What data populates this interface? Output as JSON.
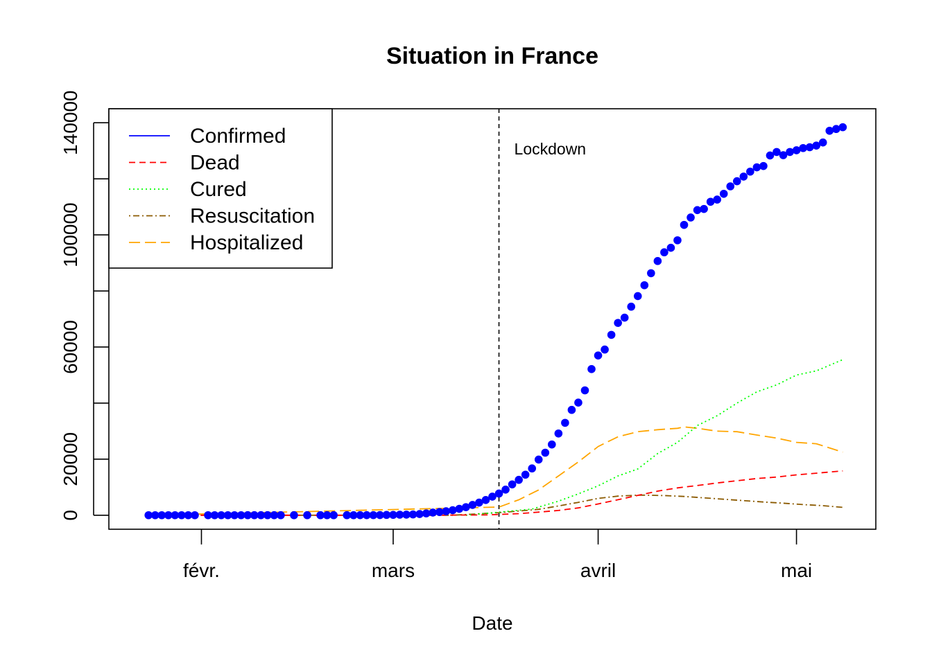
{
  "chart_data": {
    "type": "line",
    "title": "Situation in France",
    "xlabel": "Date",
    "ylabel": "",
    "x_range": [
      "2020-01-18",
      "2020-05-13"
    ],
    "ylim": [
      -5000,
      145000
    ],
    "x_ticks": [
      {
        "date": "2020-02-01",
        "label": "févr."
      },
      {
        "date": "2020-03-01",
        "label": "mars"
      },
      {
        "date": "2020-04-01",
        "label": "avril"
      },
      {
        "date": "2020-05-01",
        "label": "mai"
      }
    ],
    "y_ticks": [
      0,
      20000,
      40000,
      60000,
      80000,
      100000,
      120000,
      140000
    ],
    "y_tick_labels": [
      "0",
      "20000",
      "60000",
      "100000",
      "140000"
    ],
    "vline": {
      "date": "2020-03-17",
      "label": "Lockdown"
    },
    "legend": {
      "position": "top-left"
    },
    "series": [
      {
        "name": "Confirmed",
        "color": "#0000ff",
        "style": "points",
        "points": [
          [
            "2020-01-24",
            3
          ],
          [
            "2020-01-25",
            3
          ],
          [
            "2020-01-26",
            3
          ],
          [
            "2020-01-27",
            3
          ],
          [
            "2020-01-28",
            4
          ],
          [
            "2020-01-29",
            5
          ],
          [
            "2020-01-30",
            5
          ],
          [
            "2020-01-31",
            6
          ],
          [
            "2020-02-02",
            6
          ],
          [
            "2020-02-03",
            6
          ],
          [
            "2020-02-04",
            6
          ],
          [
            "2020-02-05",
            6
          ],
          [
            "2020-02-06",
            6
          ],
          [
            "2020-02-07",
            6
          ],
          [
            "2020-02-08",
            11
          ],
          [
            "2020-02-09",
            11
          ],
          [
            "2020-02-10",
            11
          ],
          [
            "2020-02-11",
            11
          ],
          [
            "2020-02-12",
            11
          ],
          [
            "2020-02-13",
            11
          ],
          [
            "2020-02-15",
            12
          ],
          [
            "2020-02-17",
            12
          ],
          [
            "2020-02-19",
            12
          ],
          [
            "2020-02-20",
            12
          ],
          [
            "2020-02-21",
            12
          ],
          [
            "2020-02-23",
            12
          ],
          [
            "2020-02-24",
            12
          ],
          [
            "2020-02-25",
            14
          ],
          [
            "2020-02-26",
            18
          ],
          [
            "2020-02-27",
            38
          ],
          [
            "2020-02-28",
            57
          ],
          [
            "2020-02-29",
            100
          ],
          [
            "2020-03-01",
            130
          ],
          [
            "2020-03-02",
            191
          ],
          [
            "2020-03-03",
            212
          ],
          [
            "2020-03-04",
            285
          ],
          [
            "2020-03-05",
            423
          ],
          [
            "2020-03-06",
            653
          ],
          [
            "2020-03-07",
            949
          ],
          [
            "2020-03-08",
            1126
          ],
          [
            "2020-03-09",
            1412
          ],
          [
            "2020-03-10",
            1784
          ],
          [
            "2020-03-11",
            2284
          ],
          [
            "2020-03-12",
            2876
          ],
          [
            "2020-03-13",
            3661
          ],
          [
            "2020-03-14",
            4499
          ],
          [
            "2020-03-15",
            5423
          ],
          [
            "2020-03-16",
            6633
          ],
          [
            "2020-03-17",
            7730
          ],
          [
            "2020-03-18",
            9134
          ],
          [
            "2020-03-19",
            10995
          ],
          [
            "2020-03-20",
            12612
          ],
          [
            "2020-03-21",
            14459
          ],
          [
            "2020-03-22",
            16689
          ],
          [
            "2020-03-23",
            19856
          ],
          [
            "2020-03-24",
            22304
          ],
          [
            "2020-03-25",
            25233
          ],
          [
            "2020-03-26",
            29155
          ],
          [
            "2020-03-27",
            32964
          ],
          [
            "2020-03-28",
            37575
          ],
          [
            "2020-03-29",
            40174
          ],
          [
            "2020-03-30",
            44550
          ],
          [
            "2020-03-31",
            52128
          ],
          [
            "2020-04-01",
            56989
          ],
          [
            "2020-04-02",
            59105
          ],
          [
            "2020-04-03",
            64338
          ],
          [
            "2020-04-04",
            68605
          ],
          [
            "2020-04-05",
            70478
          ],
          [
            "2020-04-06",
            74390
          ],
          [
            "2020-04-07",
            78167
          ],
          [
            "2020-04-08",
            82048
          ],
          [
            "2020-04-09",
            86334
          ],
          [
            "2020-04-10",
            90676
          ],
          [
            "2020-04-11",
            93790
          ],
          [
            "2020-04-12",
            95403
          ],
          [
            "2020-04-13",
            98076
          ],
          [
            "2020-04-14",
            103573
          ],
          [
            "2020-04-15",
            106206
          ],
          [
            "2020-04-16",
            108847
          ],
          [
            "2020-04-17",
            109252
          ],
          [
            "2020-04-18",
            111821
          ],
          [
            "2020-04-19",
            112606
          ],
          [
            "2020-04-20",
            114657
          ],
          [
            "2020-04-21",
            117324
          ],
          [
            "2020-04-22",
            119151
          ],
          [
            "2020-04-23",
            120804
          ],
          [
            "2020-04-24",
            122577
          ],
          [
            "2020-04-25",
            124114
          ],
          [
            "2020-04-26",
            124575
          ],
          [
            "2020-04-27",
            128339
          ],
          [
            "2020-04-28",
            129581
          ],
          [
            "2020-04-29",
            128442
          ],
          [
            "2020-04-30",
            129581
          ],
          [
            "2020-05-01",
            130185
          ],
          [
            "2020-05-02",
            130979
          ],
          [
            "2020-05-03",
            131287
          ],
          [
            "2020-05-04",
            131863
          ],
          [
            "2020-05-05",
            132967
          ],
          [
            "2020-05-06",
            137150
          ],
          [
            "2020-05-07",
            137779
          ],
          [
            "2020-05-08",
            138421
          ]
        ]
      },
      {
        "name": "Dead",
        "color": "#ff0000",
        "style": "dashed",
        "points": [
          [
            "2020-01-24",
            0
          ],
          [
            "2020-02-15",
            1
          ],
          [
            "2020-03-01",
            2
          ],
          [
            "2020-03-08",
            19
          ],
          [
            "2020-03-15",
            127
          ],
          [
            "2020-03-17",
            264
          ],
          [
            "2020-03-20",
            562
          ],
          [
            "2020-03-23",
            1100
          ],
          [
            "2020-03-26",
            1696
          ],
          [
            "2020-03-29",
            2606
          ],
          [
            "2020-04-01",
            4032
          ],
          [
            "2020-04-04",
            5532
          ],
          [
            "2020-04-07",
            7091
          ],
          [
            "2020-04-10",
            8598
          ],
          [
            "2020-04-13",
            9750
          ],
          [
            "2020-04-16",
            10600
          ],
          [
            "2020-04-19",
            11500
          ],
          [
            "2020-04-22",
            12300
          ],
          [
            "2020-04-25",
            13100
          ],
          [
            "2020-04-28",
            13600
          ],
          [
            "2020-05-01",
            14400
          ],
          [
            "2020-05-04",
            15000
          ],
          [
            "2020-05-08",
            15800
          ]
        ]
      },
      {
        "name": "Cured",
        "color": "#00ff00",
        "style": "dotted",
        "points": [
          [
            "2020-03-12",
            0
          ],
          [
            "2020-03-18",
            1300
          ],
          [
            "2020-03-22",
            2200
          ],
          [
            "2020-03-26",
            5000
          ],
          [
            "2020-03-29",
            7600
          ],
          [
            "2020-04-01",
            10500
          ],
          [
            "2020-04-04",
            14000
          ],
          [
            "2020-04-07",
            16500
          ],
          [
            "2020-04-10",
            22000
          ],
          [
            "2020-04-13",
            26000
          ],
          [
            "2020-04-16",
            32000
          ],
          [
            "2020-04-19",
            35500
          ],
          [
            "2020-04-22",
            40000
          ],
          [
            "2020-04-25",
            44000
          ],
          [
            "2020-04-28",
            46500
          ],
          [
            "2020-05-01",
            50000
          ],
          [
            "2020-05-04",
            51500
          ],
          [
            "2020-05-08",
            55500
          ]
        ]
      },
      {
        "name": "Resuscitation",
        "color": "#8b5a00",
        "style": "dotdash",
        "points": [
          [
            "2020-01-24",
            0
          ],
          [
            "2020-03-10",
            0
          ],
          [
            "2020-03-17",
            900
          ],
          [
            "2020-03-20",
            1500
          ],
          [
            "2020-03-23",
            2100
          ],
          [
            "2020-03-26",
            3300
          ],
          [
            "2020-03-29",
            4600
          ],
          [
            "2020-04-01",
            6000
          ],
          [
            "2020-04-04",
            6800
          ],
          [
            "2020-04-07",
            7150
          ],
          [
            "2020-04-08",
            7150
          ],
          [
            "2020-04-11",
            7000
          ],
          [
            "2020-04-14",
            6700
          ],
          [
            "2020-04-17",
            6200
          ],
          [
            "2020-04-20",
            5700
          ],
          [
            "2020-04-23",
            5200
          ],
          [
            "2020-04-26",
            4700
          ],
          [
            "2020-04-29",
            4300
          ],
          [
            "2020-05-02",
            3800
          ],
          [
            "2020-05-05",
            3400
          ],
          [
            "2020-05-08",
            2800
          ]
        ]
      },
      {
        "name": "Hospitalized",
        "color": "#ffa500",
        "style": "longdash",
        "points": [
          [
            "2020-01-24",
            0
          ],
          [
            "2020-03-17",
            2900
          ],
          [
            "2020-03-20",
            5500
          ],
          [
            "2020-03-23",
            9000
          ],
          [
            "2020-03-26",
            14000
          ],
          [
            "2020-03-29",
            19000
          ],
          [
            "2020-04-01",
            24500
          ],
          [
            "2020-04-04",
            28000
          ],
          [
            "2020-04-07",
            29800
          ],
          [
            "2020-04-10",
            30500
          ],
          [
            "2020-04-13",
            31000
          ],
          [
            "2020-04-14",
            31500
          ],
          [
            "2020-04-16",
            31000
          ],
          [
            "2020-04-19",
            30000
          ],
          [
            "2020-04-22",
            29800
          ],
          [
            "2020-04-25",
            28600
          ],
          [
            "2020-04-28",
            27500
          ],
          [
            "2020-05-01",
            26000
          ],
          [
            "2020-05-04",
            25500
          ],
          [
            "2020-05-08",
            22500
          ]
        ]
      }
    ]
  }
}
